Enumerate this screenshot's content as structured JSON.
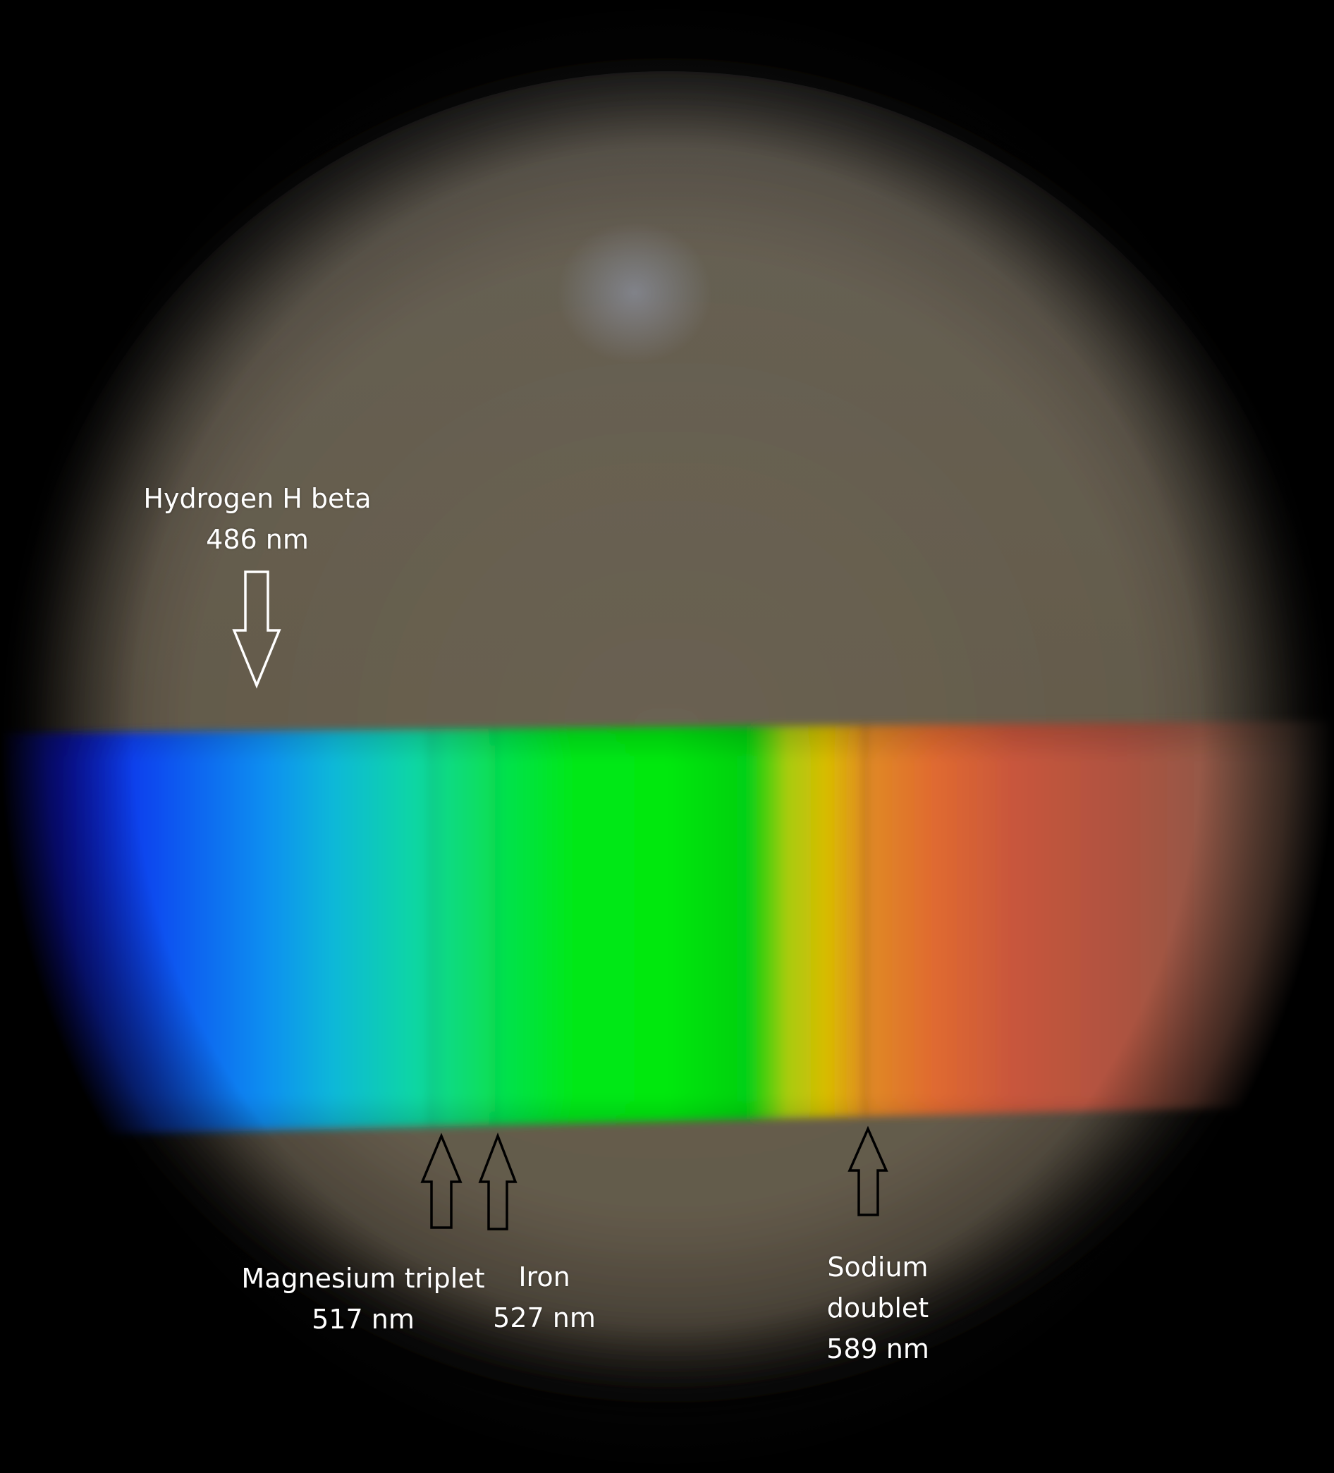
{
  "annotations": {
    "hydrogen": {
      "name": "Hydrogen H beta",
      "wavelength": "486 nm"
    },
    "magnesium": {
      "name": "Magnesium triplet",
      "wavelength": "517 nm"
    },
    "iron": {
      "name": "Iron",
      "wavelength": "527 nm"
    },
    "sodium": {
      "name_line1": "Sodium",
      "name_line2": "doublet",
      "wavelength": "589 nm"
    }
  },
  "colors": {
    "background": "#060606",
    "disc": "#625a4a",
    "spectrum_violet": "#0a10d8",
    "spectrum_blue": "#0a7ff0",
    "spectrum_cyan": "#0fd0a8",
    "spectrum_green": "#00e80e",
    "spectrum_yellow": "#d6c000",
    "spectrum_orange": "#e06a30",
    "spectrum_red": "#b85040",
    "arrow_hbeta_outline": "#ffffff",
    "arrow_absorption_outline": "#000000"
  }
}
